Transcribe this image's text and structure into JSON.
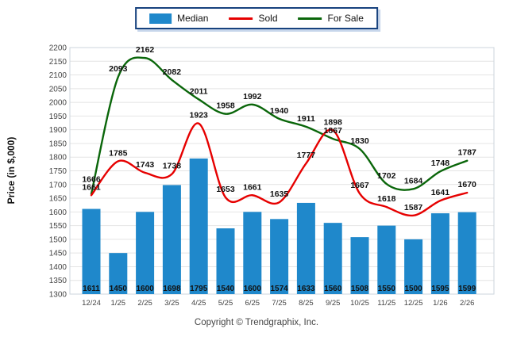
{
  "legend": {
    "items": [
      {
        "label": "Median",
        "swatch": "bar-swatch"
      },
      {
        "label": "Sold",
        "swatch": "line-swatch"
      },
      {
        "label": "For Sale",
        "swatch": "line-swatch"
      }
    ]
  },
  "y_axis_title": "Price (in $,000)",
  "footer_text": "Copyright © Trendgraphix, Inc.",
  "colors": {
    "median_bar": "#1f88cb",
    "sold_line": "#e60000",
    "for_sale_line": "#0a660a",
    "gridline": "#e4e4e4",
    "plot_border": "#ccd5dd",
    "tick_text": "#444444",
    "data_label_text": "#111111",
    "legend_border": "#17427e"
  },
  "chart_data": {
    "type": "bar",
    "subtype": "combo-bar-line",
    "title": "",
    "xlabel": "",
    "ylabel": "Price (in $,000)",
    "ylim": [
      1300,
      2200
    ],
    "ytick_step": 50,
    "grid": true,
    "legend_position": "top-center",
    "categories": [
      "12/24",
      "1/25",
      "2/25",
      "3/25",
      "4/25",
      "5/25",
      "6/25",
      "7/25",
      "8/25",
      "9/25",
      "10/25",
      "11/25",
      "12/25",
      "1/26",
      "2/26"
    ],
    "series": [
      {
        "name": "Median",
        "type": "bar",
        "color": "#1f88cb",
        "values": [
          1611,
          1450,
          1600,
          1698,
          1795,
          1540,
          1600,
          1574,
          1633,
          1560,
          1508,
          1550,
          1500,
          1595,
          1599
        ]
      },
      {
        "name": "Sold",
        "type": "line",
        "color": "#e60000",
        "values": [
          1661,
          1785,
          1743,
          1738,
          1923,
          1653,
          1661,
          1635,
          1777,
          1898,
          1667,
          1618,
          1587,
          1641,
          1670
        ]
      },
      {
        "name": "For Sale",
        "type": "line",
        "color": "#0a660a",
        "values": [
          1666,
          2093,
          2162,
          2082,
          2011,
          1958,
          1992,
          1940,
          1911,
          1867,
          1830,
          1702,
          1684,
          1748,
          1787
        ]
      }
    ]
  }
}
